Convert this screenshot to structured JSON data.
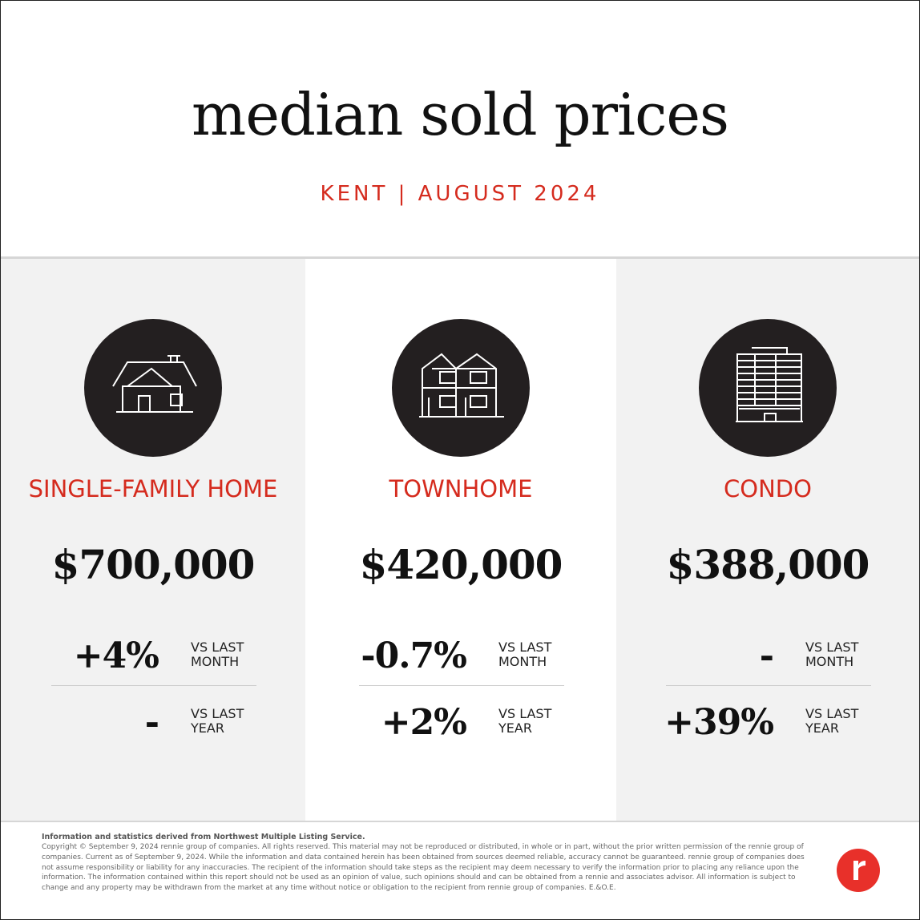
{
  "header": {
    "title": "median sold prices",
    "subtitle": "KENT | AUGUST 2024"
  },
  "cards": [
    {
      "label": "SINGLE-FAMILY HOME",
      "price": "$700,000",
      "rows": [
        {
          "change": "+4%",
          "label": "VS LAST MONTH"
        },
        {
          "change": "-",
          "label": "VS LAST YEAR"
        }
      ]
    },
    {
      "label": "TOWNHOME",
      "price": "$420,000",
      "rows": [
        {
          "change": "-0.7%",
          "label": "VS LAST MONTH"
        },
        {
          "change": "+2%",
          "label": "VS LAST YEAR"
        }
      ]
    },
    {
      "label": "CONDO",
      "price": "$388,000",
      "rows": [
        {
          "change": "-",
          "label": "VS LAST MONTH"
        },
        {
          "change": "+39%",
          "label": "VS LAST YEAR"
        }
      ]
    }
  ],
  "footer": {
    "source": "Information and statistics derived from Northwest Multiple Listing Service.",
    "disclaimer": "Copyright © September 9, 2024 rennie group of companies. All rights reserved. This material may not be reproduced or distributed, in whole or in part, without the prior written permission of the rennie group of companies. Current as of September 9, 2024. While the information and data contained herein has been obtained from sources deemed reliable, accuracy cannot be guaranteed. rennie group of companies does not assume responsibility or liability for any inaccuracies. The recipient of the information should take steps as the recipient may deem necessary to verify the information prior to placing any reliance upon the information. The information contained within this report should not be used as an opinion of value, such opinions should and can be obtained from a rennie and associates advisor. All information is subject to change and any property may be withdrawn from the market at any time without notice or obligation to the recipient from rennie group of companies. E.&O.E."
  }
}
